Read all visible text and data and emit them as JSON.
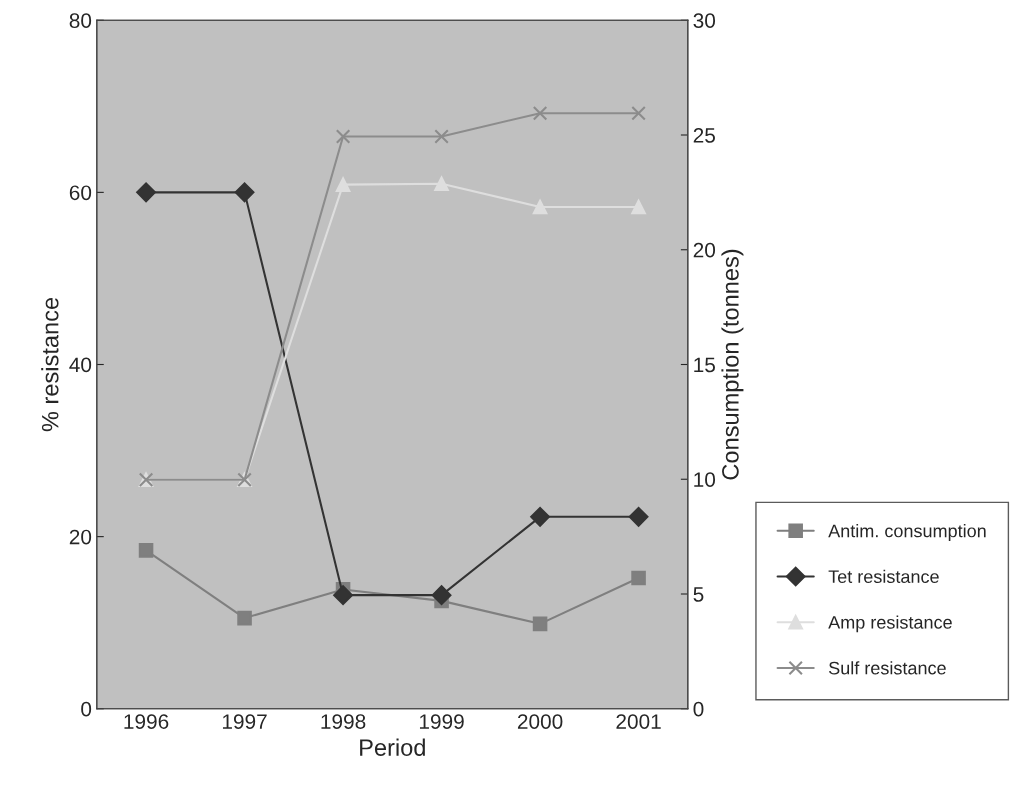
{
  "chart_data": {
    "type": "line",
    "xlabel": "Period",
    "ylabel": "% resistance",
    "y2label": "Consumption (tonnes)",
    "categories": [
      "1996",
      "1997",
      "1998",
      "1999",
      "2000",
      "2001"
    ],
    "ylim": [
      0,
      80
    ],
    "yticks": [
      0,
      20,
      40,
      60,
      80
    ],
    "y2lim": [
      0,
      30
    ],
    "y2ticks": [
      0,
      5,
      10,
      15,
      20,
      25,
      30
    ],
    "grid": false,
    "legend": "right",
    "series": [
      {
        "name": "Antim. consumption",
        "color": "#7f7f7f",
        "marker": "square",
        "axis": "y2",
        "values": [
          6.9,
          3.95,
          5.2,
          4.7,
          3.7,
          5.7
        ]
      },
      {
        "name": "Tet resistance",
        "color": "#333333",
        "marker": "diamond",
        "values": [
          60,
          60,
          13.2,
          13.2,
          22.3,
          22.3
        ]
      },
      {
        "name": "Amp resistance",
        "color": "#dedede",
        "marker": "triangle",
        "values": [
          26.6,
          26.6,
          60.9,
          61,
          58.3,
          58.3
        ]
      },
      {
        "name": "Sulf resistance",
        "color": "#8c8c8c",
        "marker": "cross",
        "values": [
          26.6,
          26.6,
          66.5,
          66.5,
          69.2,
          69.2
        ]
      }
    ]
  }
}
